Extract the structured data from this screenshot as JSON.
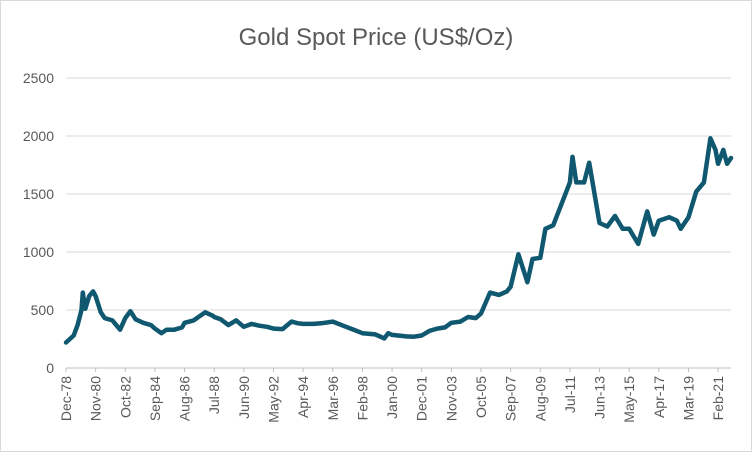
{
  "chart_data": {
    "type": "line",
    "title": "Gold Spot Price (US$/Oz)",
    "xlabel": "",
    "ylabel": "",
    "ylim": [
      0,
      2500
    ],
    "yticks": [
      0,
      500,
      1000,
      1500,
      2000,
      2500
    ],
    "xtick_labels": [
      "Dec-78",
      "Nov-80",
      "Oct-82",
      "Sep-84",
      "Aug-86",
      "Jul-88",
      "Jun-90",
      "May-92",
      "Apr-94",
      "Mar-96",
      "Feb-98",
      "Jan-00",
      "Dec-01",
      "Nov-03",
      "Oct-05",
      "Sep-07",
      "Aug-09",
      "Jul-11",
      "Jun-13",
      "May-15",
      "Apr-17",
      "Mar-19",
      "Feb-21"
    ],
    "grid": true,
    "legend": "none",
    "color": "#0f5870",
    "series": [
      {
        "values": [
          [
            "Dec-78",
            220
          ],
          [
            "Jun-79",
            280
          ],
          [
            "Sep-79",
            370
          ],
          [
            "Dec-79",
            500
          ],
          [
            "Jan-80",
            650
          ],
          [
            "Mar-80",
            510
          ],
          [
            "Jun-80",
            620
          ],
          [
            "Sep-80",
            660
          ],
          [
            "Nov-80",
            620
          ],
          [
            "Mar-81",
            480
          ],
          [
            "Jun-81",
            430
          ],
          [
            "Dec-81",
            410
          ],
          [
            "Jun-82",
            330
          ],
          [
            "Oct-82",
            430
          ],
          [
            "Feb-83",
            490
          ],
          [
            "Jun-83",
            420
          ],
          [
            "Dec-83",
            390
          ],
          [
            "Jun-84",
            370
          ],
          [
            "Sep-84",
            340
          ],
          [
            "Feb-85",
            300
          ],
          [
            "Jun-85",
            330
          ],
          [
            "Dec-85",
            330
          ],
          [
            "Jun-86",
            350
          ],
          [
            "Aug-86",
            390
          ],
          [
            "Mar-87",
            410
          ],
          [
            "Dec-87",
            480
          ],
          [
            "Jun-88",
            450
          ],
          [
            "Jul-88",
            440
          ],
          [
            "Dec-88",
            420
          ],
          [
            "Jun-89",
            370
          ],
          [
            "Dec-89",
            410
          ],
          [
            "Jun-90",
            355
          ],
          [
            "Dec-90",
            380
          ],
          [
            "Jun-91",
            365
          ],
          [
            "Dec-91",
            355
          ],
          [
            "May-92",
            340
          ],
          [
            "Dec-92",
            335
          ],
          [
            "Jul-93",
            400
          ],
          [
            "Dec-93",
            385
          ],
          [
            "Apr-94",
            380
          ],
          [
            "Dec-94",
            380
          ],
          [
            "Jun-95",
            385
          ],
          [
            "Mar-96",
            400
          ],
          [
            "Dec-96",
            360
          ],
          [
            "Jun-97",
            335
          ],
          [
            "Feb-98",
            300
          ],
          [
            "Dec-98",
            290
          ],
          [
            "Jul-99",
            255
          ],
          [
            "Oct-99",
            300
          ],
          [
            "Jan-00",
            285
          ],
          [
            "Dec-00",
            272
          ],
          [
            "Jun-01",
            270
          ],
          [
            "Dec-01",
            280
          ],
          [
            "Jun-02",
            320
          ],
          [
            "Dec-02",
            340
          ],
          [
            "Jun-03",
            350
          ],
          [
            "Nov-03",
            390
          ],
          [
            "Jun-04",
            400
          ],
          [
            "Dec-04",
            440
          ],
          [
            "Jun-05",
            430
          ],
          [
            "Oct-05",
            470
          ],
          [
            "May-06",
            650
          ],
          [
            "Dec-06",
            630
          ],
          [
            "Jun-07",
            660
          ],
          [
            "Sep-07",
            700
          ],
          [
            "Mar-08",
            980
          ],
          [
            "Oct-08",
            740
          ],
          [
            "Feb-09",
            940
          ],
          [
            "Aug-09",
            950
          ],
          [
            "Dec-09",
            1200
          ],
          [
            "Jun-10",
            1230
          ],
          [
            "Dec-10",
            1400
          ],
          [
            "Jul-11",
            1600
          ],
          [
            "Sep-11",
            1820
          ],
          [
            "Dec-11",
            1600
          ],
          [
            "Jun-12",
            1600
          ],
          [
            "Oct-12",
            1770
          ],
          [
            "Jun-13",
            1250
          ],
          [
            "Dec-13",
            1220
          ],
          [
            "Jun-14",
            1310
          ],
          [
            "Dec-14",
            1200
          ],
          [
            "May-15",
            1200
          ],
          [
            "Dec-15",
            1070
          ],
          [
            "Jul-16",
            1350
          ],
          [
            "Dec-16",
            1150
          ],
          [
            "Apr-17",
            1270
          ],
          [
            "Dec-17",
            1300
          ],
          [
            "Jun-18",
            1270
          ],
          [
            "Sep-18",
            1200
          ],
          [
            "Mar-19",
            1300
          ],
          [
            "Sep-19",
            1520
          ],
          [
            "Mar-20",
            1600
          ],
          [
            "Aug-20",
            1980
          ],
          [
            "Dec-20",
            1880
          ],
          [
            "Feb-21",
            1760
          ],
          [
            "Jun-21",
            1880
          ],
          [
            "Sep-21",
            1760
          ],
          [
            "Dec-21",
            1810
          ]
        ]
      }
    ]
  }
}
